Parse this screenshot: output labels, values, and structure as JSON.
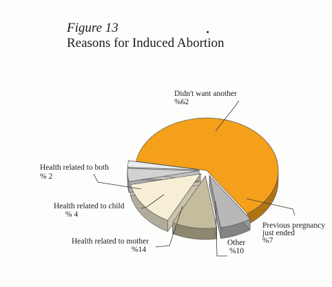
{
  "figure": {
    "label": "Figure 13",
    "title": "Reasons for Induced Abortion"
  },
  "chart_data": {
    "type": "pie",
    "title": "Reasons for Induced Abortion",
    "slices": [
      {
        "name": "Didn't want another",
        "label": "%62",
        "value": 62,
        "color": "#f5a01a"
      },
      {
        "name": "Previous pregnancy just ended",
        "label": "%7",
        "value": 7,
        "color": "#b8b8b8"
      },
      {
        "name": "Other",
        "label": "%10",
        "value": 10,
        "color": "#c4bc9c"
      },
      {
        "name": "Health related to mother",
        "label": "%14",
        "value": 14,
        "color": "#f6efd6"
      },
      {
        "name": "Health related to child",
        "label": "% 4",
        "value": 4,
        "color": "#d2d2d2"
      },
      {
        "name": "Health related to both",
        "label": "% 2",
        "value": 2,
        "color": "#ececec"
      }
    ],
    "legend": "none",
    "style": "3d-exploded"
  }
}
